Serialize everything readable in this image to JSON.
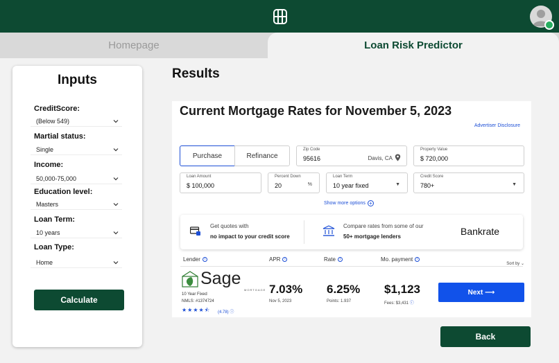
{
  "header": {
    "logo_icon": "bridge-logo-icon",
    "avatar_icon": "user-avatar-icon"
  },
  "tabs": [
    {
      "label": "Homepage"
    },
    {
      "label": "Loan Risk Predictor"
    }
  ],
  "inputs": {
    "title": "Inputs",
    "fields": [
      {
        "label": "CreditScore:",
        "value": "(Below 549)"
      },
      {
        "label": "Martial status:",
        "value": "Single"
      },
      {
        "label": "Income:",
        "value": "50,000-75,000"
      },
      {
        "label": "Education level:",
        "value": "Masters"
      },
      {
        "label": "Loan Term:",
        "value": "10 years"
      },
      {
        "label": "Loan Type:",
        "value": "Home"
      }
    ],
    "calculate_label": "Calculate"
  },
  "results": {
    "title": "Results",
    "rates": {
      "title": "Current Mortgage Rates for November 5, 2023",
      "disclosure": "Advertiser Disclosure",
      "purchase_label": "Purchase",
      "refinance_label": "Refinance",
      "zip": {
        "label": "Zip Code",
        "value": "95616",
        "location": "Davis, CA"
      },
      "property_value": {
        "label": "Property Value",
        "currency": "$",
        "value": "720,000"
      },
      "loan_amount": {
        "label": "Loan Amount",
        "currency": "$",
        "value": "100,000"
      },
      "percent_down": {
        "label": "Percent Down",
        "value": "20",
        "unit": "%"
      },
      "loan_term": {
        "label": "Loan Term",
        "value": "10 year fixed"
      },
      "credit_score": {
        "label": "Credit Score",
        "value": "780+"
      },
      "show_more": "Show more options",
      "strip": {
        "quotes_line1": "Get quotes with",
        "quotes_line2": "no impact to your credit score",
        "compare_line1": "Compare rates from some of our",
        "compare_line2": "50+ mortgage lenders",
        "brand": "Bankrate"
      },
      "columns": {
        "lender": "Lender",
        "apr": "APR",
        "rate": "Rate",
        "payment": "Mo. payment",
        "sort": "Sort by"
      },
      "offer": {
        "lender_name": "Sage",
        "lender_sub": "MORTGAGE",
        "product": "10 Year Fixed",
        "nmls": "NMLS: #1374724",
        "rating": "(4.78)",
        "stars": 4.5,
        "apr": "7.03%",
        "apr_date": "Nov 5, 2023",
        "rate": "6.25%",
        "points": "Points: 1.937",
        "payment": "$1,123",
        "fees": "Fees: $3,431",
        "next_label": "Next ⟶"
      }
    },
    "back_label": "Back"
  }
}
